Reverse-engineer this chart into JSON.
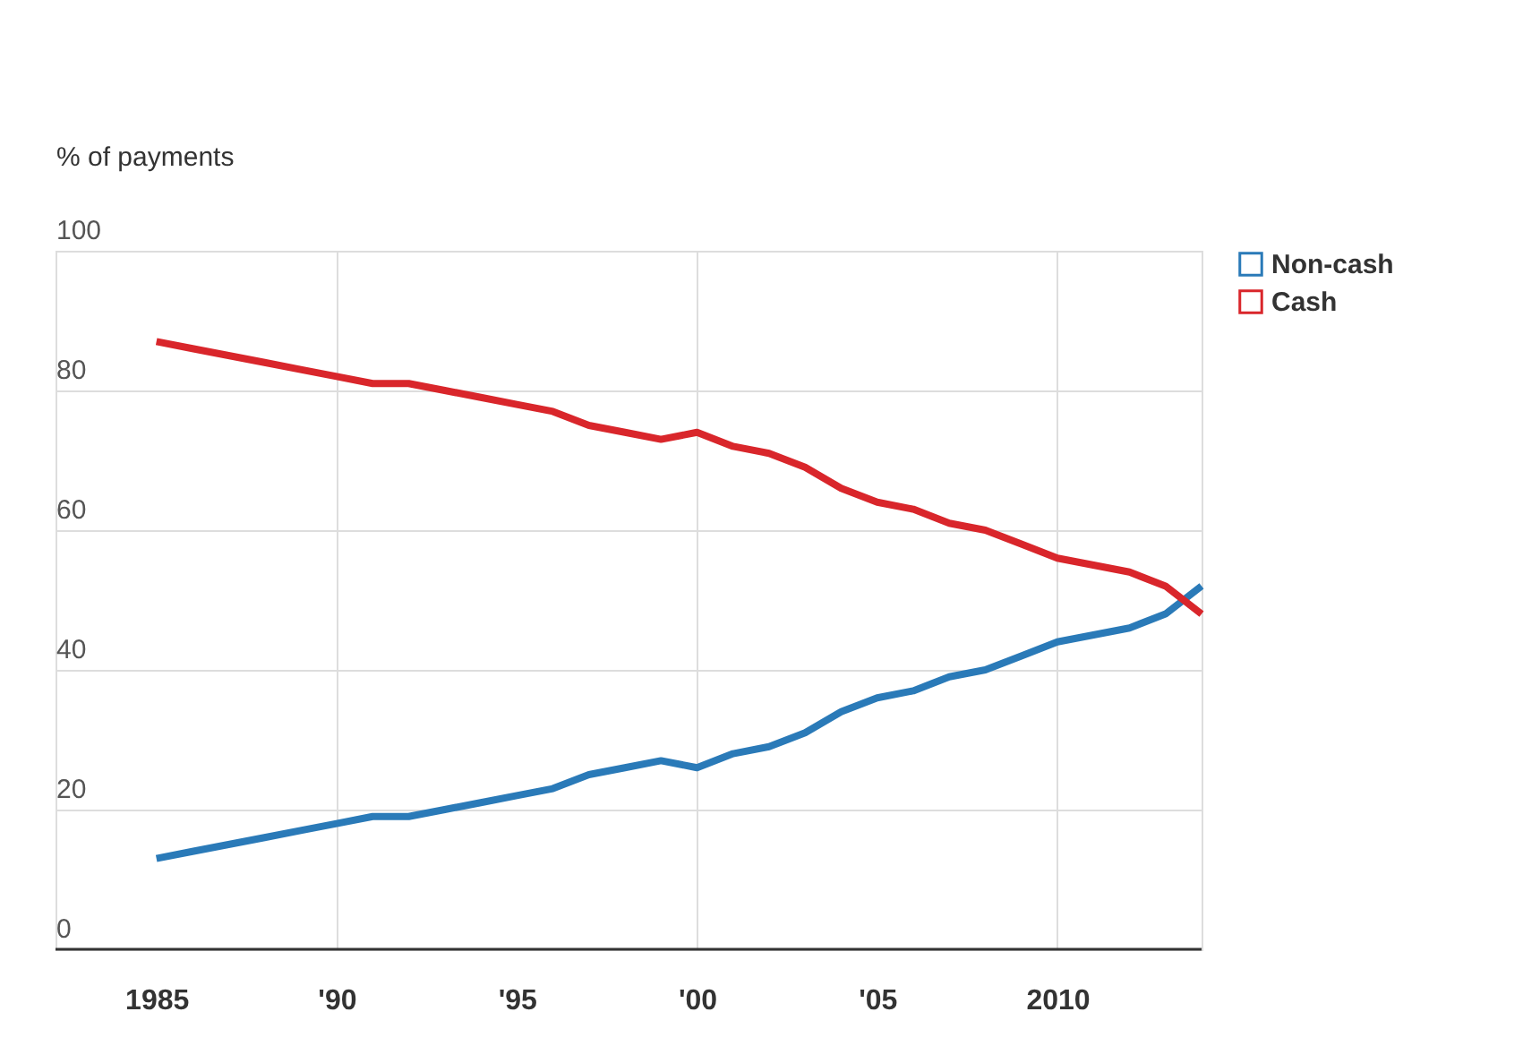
{
  "chart_data": {
    "type": "line",
    "ylabel": "% of payments",
    "x": [
      1985,
      1986,
      1987,
      1988,
      1989,
      1990,
      1991,
      1992,
      1993,
      1994,
      1995,
      1996,
      1997,
      1998,
      1999,
      2000,
      2001,
      2002,
      2003,
      2004,
      2005,
      2006,
      2007,
      2008,
      2009,
      2010,
      2011,
      2012,
      2013,
      2014
    ],
    "series": [
      {
        "name": "Non-cash",
        "color": "#2a7ab8",
        "values": [
          13,
          14,
          15,
          16,
          17,
          18,
          19,
          19,
          20,
          21,
          22,
          23,
          25,
          26,
          27,
          26,
          28,
          29,
          31,
          34,
          36,
          37,
          39,
          40,
          42,
          44,
          45,
          46,
          48,
          52
        ]
      },
      {
        "name": "Cash",
        "color": "#d9262b",
        "values": [
          87,
          86,
          85,
          84,
          83,
          82,
          81,
          81,
          80,
          79,
          78,
          77,
          75,
          74,
          73,
          74,
          72,
          71,
          69,
          66,
          64,
          63,
          61,
          60,
          58,
          56,
          55,
          54,
          52,
          48
        ]
      }
    ],
    "xlim": [
      1982.2,
      2014
    ],
    "xticks": [
      1985,
      {
        "value": 1990,
        "label": "'90"
      },
      {
        "value": 1995,
        "label": "'95"
      },
      {
        "value": 2000,
        "label": "'00"
      },
      {
        "value": 2005,
        "label": "'05"
      },
      2010
    ],
    "ylim": [
      0,
      100
    ],
    "yticks": [
      0,
      20,
      40,
      60,
      80,
      100
    ],
    "grid": true,
    "legend": "top right",
    "line_style": "solid",
    "marker": "none"
  }
}
